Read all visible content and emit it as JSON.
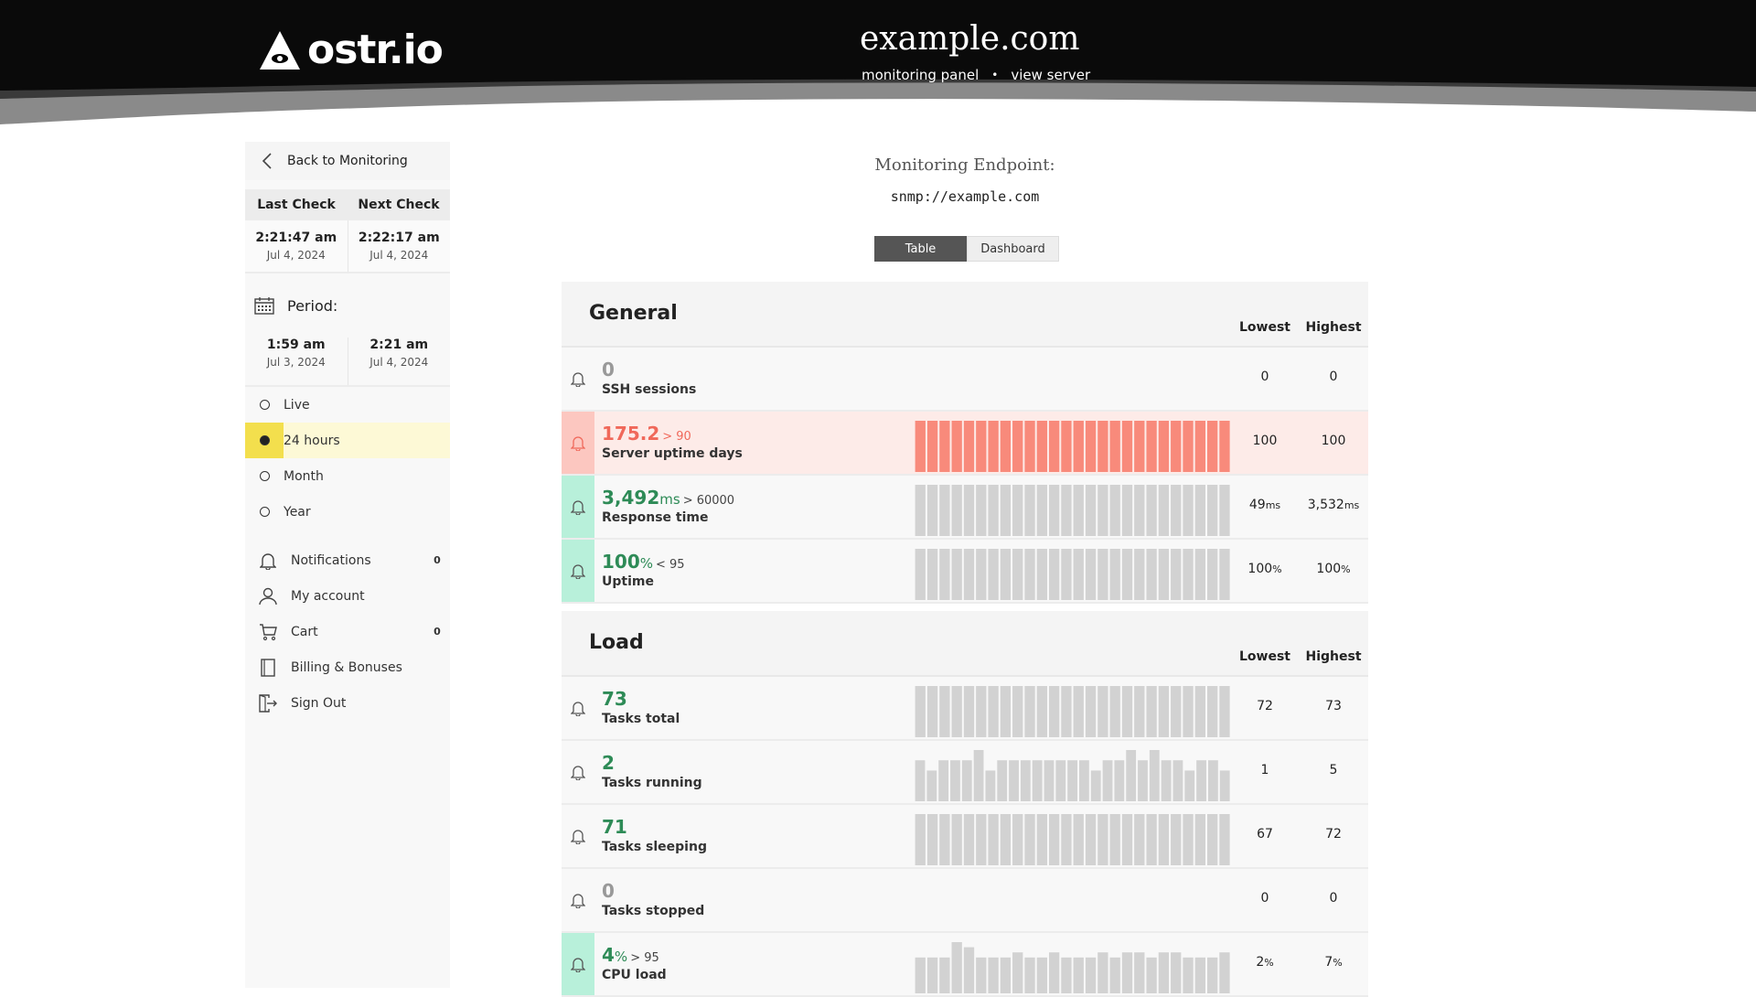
{
  "header": {
    "logo_text": "ostr.io",
    "site_title": "example.com",
    "links": [
      "monitoring panel",
      "view server"
    ],
    "separator": "•"
  },
  "sidebar": {
    "back_label": "Back to Monitoring",
    "last_check_label": "Last Check",
    "next_check_label": "Next Check",
    "last_check": {
      "time": "2:21:47 am",
      "date": "Jul 4, 2024"
    },
    "next_check": {
      "time": "2:22:17 am",
      "date": "Jul 4, 2024"
    },
    "period_label": "Period:",
    "period_start": {
      "time": "1:59 am",
      "date": "Jul 3, 2024"
    },
    "period_end": {
      "time": "2:21 am",
      "date": "Jul 4, 2024"
    },
    "ranges": [
      {
        "label": "Live",
        "selected": false
      },
      {
        "label": "24 hours",
        "selected": true
      },
      {
        "label": "Month",
        "selected": false
      },
      {
        "label": "Year",
        "selected": false
      }
    ],
    "menu": [
      {
        "label": "Notifications",
        "icon": "bell-icon",
        "count": "0"
      },
      {
        "label": "My account",
        "icon": "user-icon",
        "count": ""
      },
      {
        "label": "Cart",
        "icon": "cart-icon",
        "count": "0"
      },
      {
        "label": "Billing & Bonuses",
        "icon": "book-icon",
        "count": ""
      },
      {
        "label": "Sign Out",
        "icon": "sign-out-icon",
        "count": ""
      }
    ]
  },
  "main": {
    "endpoint_label": "Monitoring Endpoint:",
    "endpoint_value": "snmp://example.com",
    "tabs": [
      {
        "label": "Table",
        "active": true
      },
      {
        "label": "Dashboard",
        "active": false
      }
    ],
    "lowest_label": "Lowest",
    "highest_label": "Highest",
    "colors": {
      "ok": "#2e8b57",
      "alert": "#f0685a",
      "bar": "#d2d2d2",
      "alert_bar": "#f88a7b",
      "ok_stripe": "#b8f0da",
      "alert_stripe": "#fcc7c0"
    },
    "sections": [
      {
        "title": "General",
        "metrics": [
          {
            "value": "0",
            "unit": "",
            "threshold": "",
            "name": "SSH sessions",
            "lowest": "0",
            "lowest_unit": "",
            "highest": "0",
            "highest_unit": "",
            "status": "none",
            "bars": []
          },
          {
            "value": "175.2",
            "unit": "",
            "threshold": "> 90",
            "name": "Server uptime days",
            "lowest": "100",
            "lowest_unit": "",
            "highest": "100",
            "highest_unit": "",
            "status": "alert",
            "bars": [
              1,
              1,
              1,
              1,
              1,
              1,
              1,
              1,
              1,
              1,
              1,
              1,
              1,
              1,
              1,
              1,
              1,
              1,
              1,
              1,
              1,
              1,
              1,
              1,
              1,
              1
            ]
          },
          {
            "value": "3,492",
            "unit": "ms",
            "threshold": "> 60000",
            "name": "Response time",
            "lowest": "49",
            "lowest_unit": "ms",
            "highest": "3,532",
            "highest_unit": "ms",
            "status": "ok",
            "bars": [
              1,
              1,
              1,
              1,
              1,
              1,
              1,
              1,
              1,
              1,
              1,
              1,
              1,
              1,
              1,
              1,
              1,
              1,
              1,
              1,
              1,
              1,
              1,
              1,
              1,
              1
            ]
          },
          {
            "value": "100",
            "unit": "%",
            "threshold": "< 95",
            "name": "Uptime",
            "lowest": "100",
            "lowest_unit": "%",
            "highest": "100",
            "highest_unit": "%",
            "status": "ok",
            "bars": [
              1,
              1,
              1,
              1,
              1,
              1,
              1,
              1,
              1,
              1,
              1,
              1,
              1,
              1,
              1,
              1,
              1,
              1,
              1,
              1,
              1,
              1,
              1,
              1,
              1,
              1
            ]
          }
        ]
      },
      {
        "title": "Load",
        "metrics": [
          {
            "value": "73",
            "unit": "",
            "threshold": "",
            "name": "Tasks total",
            "lowest": "72",
            "lowest_unit": "",
            "highest": "73",
            "highest_unit": "",
            "status": "none",
            "bars": [
              1,
              1,
              1,
              1,
              1,
              1,
              1,
              1,
              1,
              1,
              1,
              1,
              1,
              1,
              1,
              1,
              1,
              1,
              1,
              1,
              1,
              1,
              1,
              1,
              1,
              1
            ]
          },
          {
            "value": "2",
            "unit": "",
            "threshold": "",
            "name": "Tasks running",
            "lowest": "1",
            "lowest_unit": "",
            "highest": "5",
            "highest_unit": "",
            "status": "none",
            "bars": [
              0.8,
              0.6,
              0.8,
              0.8,
              0.8,
              1,
              0.6,
              0.8,
              0.8,
              0.8,
              0.8,
              0.8,
              0.8,
              0.8,
              0.8,
              0.6,
              0.8,
              0.8,
              1,
              0.8,
              1,
              0.8,
              0.8,
              0.6,
              0.8,
              0.8,
              0.6
            ]
          },
          {
            "value": "71",
            "unit": "",
            "threshold": "",
            "name": "Tasks sleeping",
            "lowest": "67",
            "lowest_unit": "",
            "highest": "72",
            "highest_unit": "",
            "status": "none",
            "bars": [
              1,
              1,
              1,
              1,
              1,
              1,
              1,
              1,
              1,
              1,
              1,
              1,
              1,
              1,
              1,
              1,
              1,
              1,
              1,
              1,
              1,
              1,
              1,
              1,
              1,
              1
            ]
          },
          {
            "value": "0",
            "unit": "",
            "threshold": "",
            "name": "Tasks stopped",
            "lowest": "0",
            "lowest_unit": "",
            "highest": "0",
            "highest_unit": "",
            "status": "none",
            "bars": []
          },
          {
            "value": "4",
            "unit": "%",
            "threshold": "> 95",
            "name": "CPU load",
            "lowest": "2",
            "lowest_unit": "%",
            "highest": "7",
            "highest_unit": "%",
            "status": "ok",
            "bars": [
              0.7,
              0.7,
              0.7,
              1,
              0.9,
              0.7,
              0.7,
              0.7,
              0.8,
              0.7,
              0.7,
              0.8,
              0.7,
              0.7,
              0.7,
              0.8,
              0.7,
              0.8,
              0.8,
              0.7,
              0.8,
              0.8,
              0.7,
              0.7,
              0.7,
              0.8
            ]
          }
        ]
      }
    ]
  }
}
